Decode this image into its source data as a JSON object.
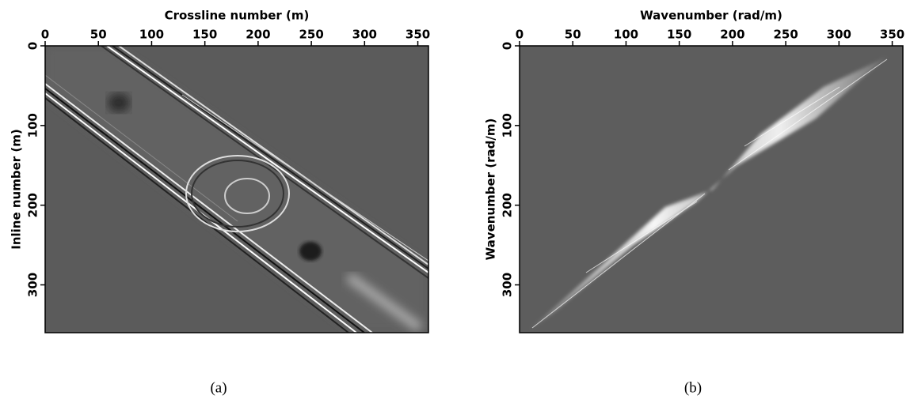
{
  "chart_data": [
    {
      "type": "image",
      "x_label": "Crossline number (m)",
      "y_label": "Inline number (m)",
      "xlim": [
        0,
        360
      ],
      "ylim": [
        0,
        360
      ],
      "xticks": [
        0,
        50,
        100,
        150,
        200,
        250,
        300,
        350
      ],
      "yticks": [
        0,
        100,
        200,
        300
      ],
      "caption": "(a)"
    },
    {
      "type": "image",
      "x_label": "Wavenumber (rad/m)",
      "y_label": "Wavenumber (rad/m)",
      "xlim": [
        0,
        360
      ],
      "ylim": [
        0,
        360
      ],
      "xticks": [
        0,
        50,
        100,
        150,
        200,
        250,
        300,
        350
      ],
      "yticks": [
        0,
        100,
        200,
        300
      ],
      "caption": "(b)"
    }
  ]
}
